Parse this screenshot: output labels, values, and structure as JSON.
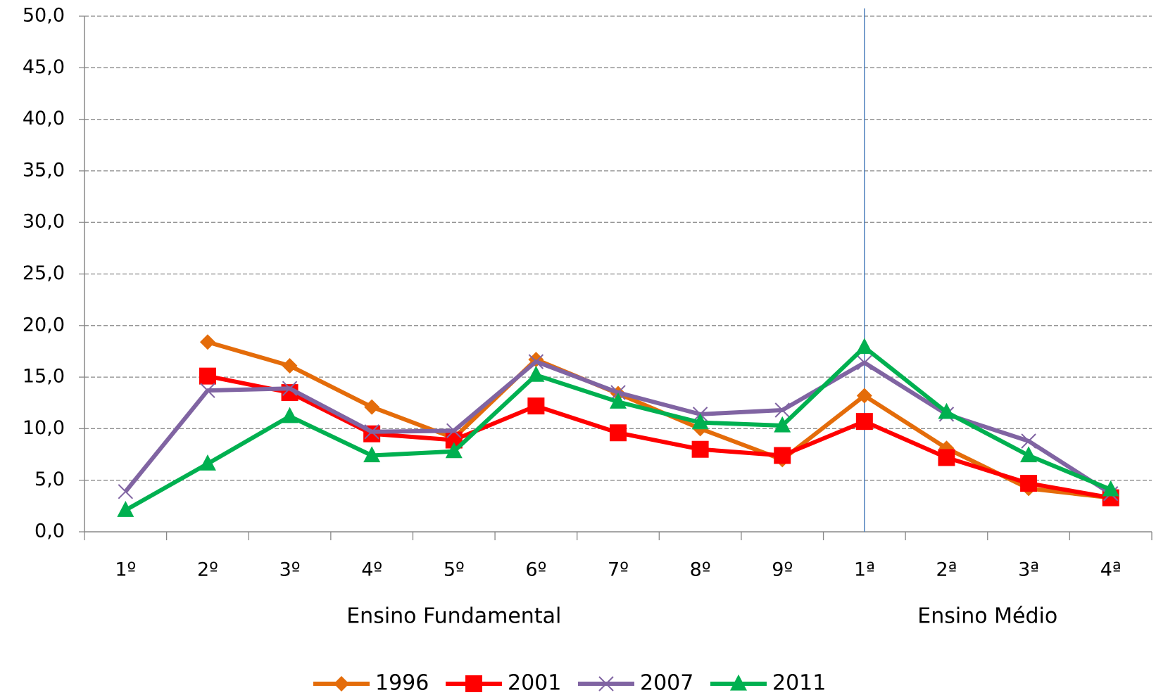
{
  "chart_data": {
    "type": "line",
    "groups": [
      {
        "label": "Ensino Fundamental",
        "categories": [
          "1º",
          "2º",
          "3º",
          "4º",
          "5º",
          "6º",
          "7º",
          "8º",
          "9º"
        ]
      },
      {
        "label": "Ensino Médio",
        "categories": [
          "1ª",
          "2ª",
          "3ª",
          "4ª"
        ]
      }
    ],
    "series": [
      {
        "name": "1996",
        "color": "#e46c0a",
        "marker": "diamond",
        "values": [
          null,
          18.4,
          16.1,
          12.1,
          9.1,
          16.7,
          13.4,
          10.0,
          7.0,
          13.2,
          8.1,
          4.2,
          3.3
        ]
      },
      {
        "name": "2001",
        "color": "#ff0000",
        "marker": "square",
        "values": [
          null,
          15.1,
          13.5,
          9.5,
          8.9,
          12.2,
          9.6,
          8.0,
          7.4,
          10.7,
          7.2,
          4.7,
          3.3
        ]
      },
      {
        "name": "2007",
        "color": "#8064a2",
        "marker": "x",
        "values": [
          3.9,
          13.7,
          13.9,
          9.7,
          9.8,
          16.5,
          13.5,
          11.4,
          11.8,
          16.4,
          11.4,
          8.8,
          3.7
        ]
      },
      {
        "name": "2011",
        "color": "#00b050",
        "marker": "triangle",
        "values": [
          2.1,
          6.6,
          11.2,
          7.4,
          7.8,
          15.2,
          12.6,
          10.6,
          10.3,
          17.9,
          11.6,
          7.4,
          4.1
        ]
      }
    ],
    "ylim": [
      0,
      50
    ],
    "yticks": [
      {
        "value": 0,
        "label": "0,0"
      },
      {
        "value": 5,
        "label": "5,0"
      },
      {
        "value": 10,
        "label": "10,0"
      },
      {
        "value": 15,
        "label": "15,0"
      },
      {
        "value": 20,
        "label": "20,0"
      },
      {
        "value": 25,
        "label": "25,0"
      },
      {
        "value": 30,
        "label": "30,0"
      },
      {
        "value": 35,
        "label": "35,0"
      },
      {
        "value": 40,
        "label": "40,0"
      },
      {
        "value": 45,
        "label": "45,0"
      },
      {
        "value": 50,
        "label": "50,0"
      }
    ],
    "grid": true,
    "legend": "bottom"
  }
}
